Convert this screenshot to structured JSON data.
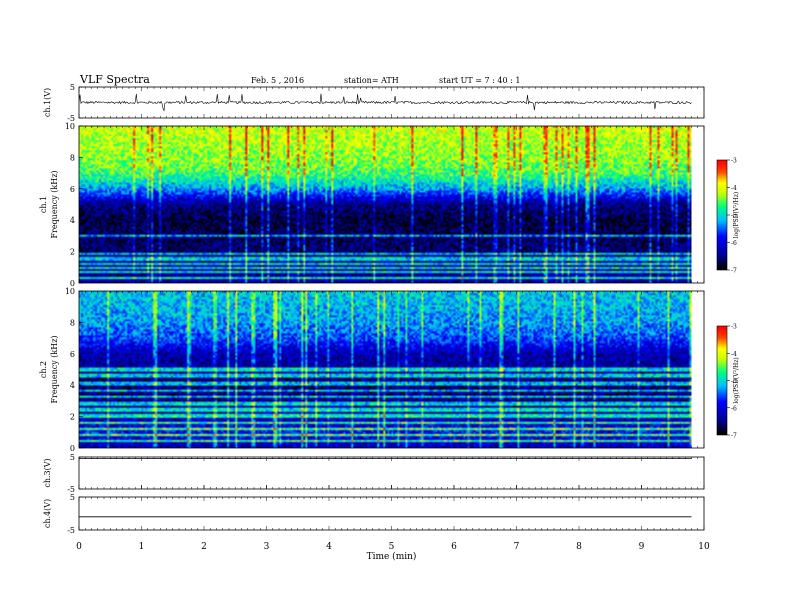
{
  "header": {
    "title": "VLF  Spectra",
    "date": "Feb. 5  , 2016",
    "station": "station= ATH",
    "start": "start  UT  =   7  : 40 : 1"
  },
  "colors": {
    "trace": "#000000",
    "colormap": [
      "#000000",
      "#00008b",
      "#0000ff",
      "#00bfff",
      "#00ff7f",
      "#c8ff00",
      "#ffff00",
      "#ff4500",
      "#ff0000",
      "#ffffff"
    ]
  },
  "chart_data": [
    {
      "type": "line",
      "panel": "ch1-waveform",
      "ylabel": "ch.1(V)",
      "ylim": [
        -5,
        5
      ],
      "yticks": [
        "5",
        "-5"
      ],
      "x_range_min": [
        0,
        9.8
      ],
      "trace_amplitude_v": 0.5,
      "spike_amplitude_v": 3
    },
    {
      "type": "heatmap",
      "panel": "ch1-spectrogram",
      "ylabel": [
        "ch.1",
        "Frequency  (kHz)"
      ],
      "ylim": [
        0,
        10
      ],
      "yticks": [
        "0",
        "2",
        "4",
        "6",
        "8",
        "10"
      ],
      "colorbar": {
        "label": "log(PSD(V²/Hz)",
        "range": [
          -7,
          -3
        ],
        "ticks": [
          "-3",
          "-4",
          "-5",
          "-6",
          "-7"
        ]
      },
      "freq_khz": [
        0,
        1,
        2,
        3,
        4,
        5,
        6,
        7,
        8,
        9,
        10
      ],
      "log_psd": [
        -6.3,
        -6.4,
        -6.6,
        -6.7,
        -6.8,
        -6.5,
        -5.3,
        -4.6,
        -4.3,
        -4.2,
        -4.1
      ]
    },
    {
      "type": "heatmap",
      "panel": "ch2-spectrogram",
      "ylabel": [
        "ch.2",
        "Frequency  (kHz)"
      ],
      "ylim": [
        0,
        10
      ],
      "yticks": [
        "0",
        "2",
        "4",
        "6",
        "8",
        "10"
      ],
      "colorbar": {
        "label": "log(PSD(V²/Hz)",
        "range": [
          -7,
          -3
        ],
        "ticks": [
          "-3",
          "-4",
          "-5",
          "-6",
          "-7"
        ]
      },
      "freq_khz": [
        0,
        1,
        2,
        3,
        4,
        5,
        6,
        7,
        8,
        9,
        10
      ],
      "log_psd": [
        -6.2,
        -5.8,
        -6.3,
        -6.5,
        -6.6,
        -6.4,
        -6.3,
        -5.6,
        -5.3,
        -5.2,
        -5.1
      ]
    },
    {
      "type": "line",
      "panel": "ch3-waveform",
      "ylabel": "ch.3(V)",
      "ylim": [
        -5,
        5
      ],
      "yticks": [
        "5",
        "-5"
      ],
      "x_range_min": [
        0,
        9.8
      ],
      "constant_v": 4.5
    },
    {
      "type": "line",
      "panel": "ch4-waveform",
      "ylabel": "ch.4(V)",
      "ylim": [
        -5,
        5
      ],
      "yticks": [
        "5",
        "-5"
      ],
      "x_range_min": [
        0,
        9.8
      ],
      "constant_v": -1
    }
  ],
  "xaxis": {
    "label": "Time  (min)",
    "range": [
      0,
      10
    ],
    "ticks": [
      "0",
      "1",
      "2",
      "3",
      "4",
      "5",
      "6",
      "7",
      "8",
      "9",
      "10"
    ]
  }
}
